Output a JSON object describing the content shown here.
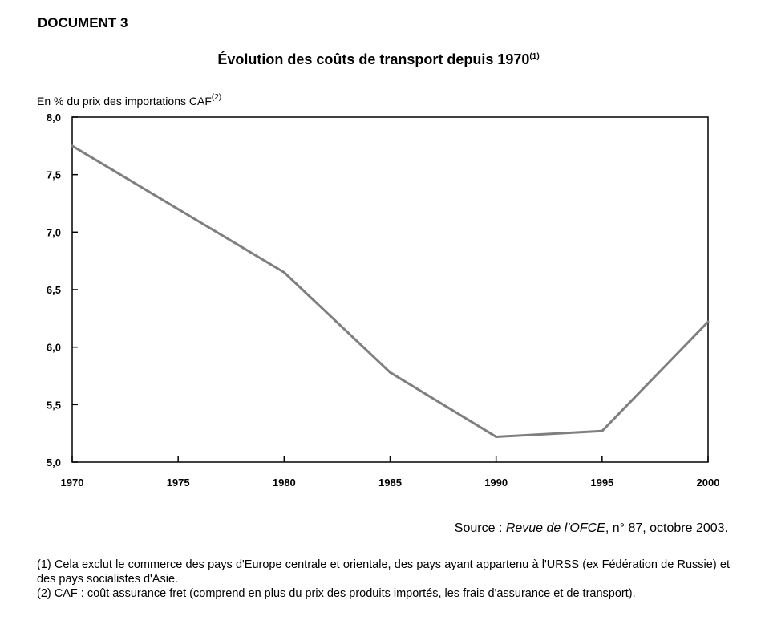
{
  "document_label": "DOCUMENT 3",
  "chart_data": {
    "type": "line",
    "title": "Évolution des coûts de transport depuis 1970",
    "title_note": "(1)",
    "ylabel": "En % du prix des importations CAF",
    "ylabel_note": "(2)",
    "xlabel": "",
    "x": [
      1970,
      1980,
      1985,
      1990,
      1995,
      2000
    ],
    "series": [
      {
        "values": [
          7.75,
          6.65,
          5.78,
          5.22,
          5.27,
          6.22
        ]
      }
    ],
    "x_ticks": [
      "1970",
      "1975",
      "1980",
      "1985",
      "1990",
      "1995",
      "2000"
    ],
    "y_ticks": [
      "5,0",
      "5,5",
      "6,0",
      "6,5",
      "7,0",
      "7,5",
      "8,0"
    ],
    "xlim": [
      1970,
      2000
    ],
    "ylim": [
      5.0,
      8.0
    ],
    "grid": false,
    "line_color": "#7f7f7f"
  },
  "source": {
    "prefix": "Source : ",
    "title": "Revue de l'OFCE",
    "suffix": ", n° 87, octobre 2003."
  },
  "notes": [
    "(1) Cela exclut le commerce des pays d'Europe centrale et orientale, des pays ayant appartenu à l'URSS (ex Fédération de Russie) et des pays socialistes d'Asie.",
    "(2) CAF : coût assurance fret (comprend en plus du prix des produits importés, les frais d'assurance et de transport)."
  ]
}
